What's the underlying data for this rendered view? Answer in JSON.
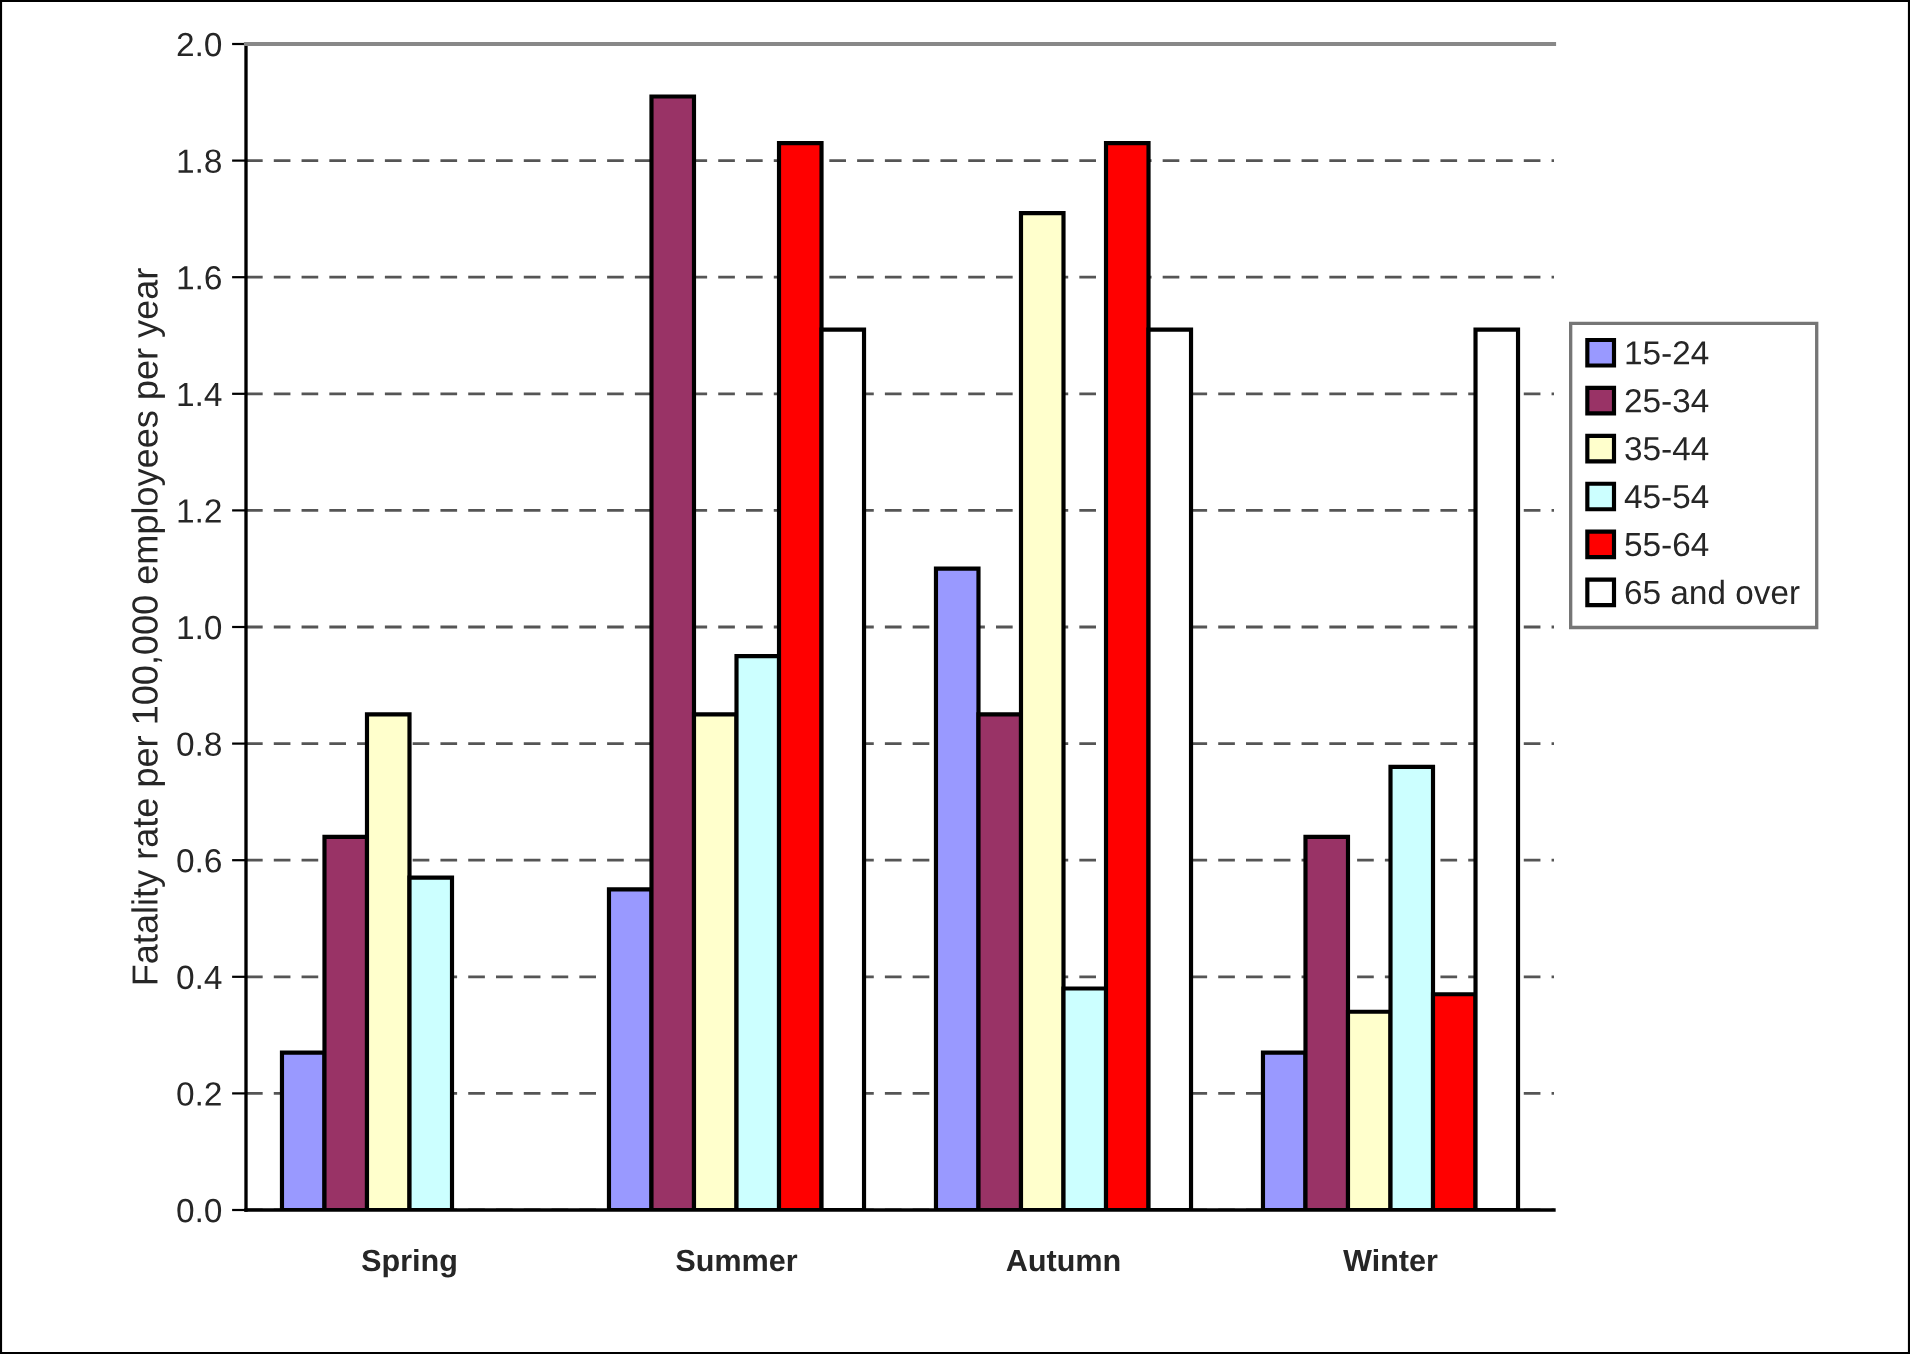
{
  "chart_data": {
    "type": "bar",
    "ylabel": "Fatality rate per 100,000 employees per year",
    "categories": [
      "Spring",
      "Summer",
      "Autumn",
      "Winter"
    ],
    "series": [
      {
        "name": "15-24",
        "color": "#9999ff",
        "values": [
          0.27,
          0.55,
          1.1,
          0.27
        ]
      },
      {
        "name": "25-34",
        "color": "#993366",
        "values": [
          0.64,
          1.91,
          0.85,
          0.64
        ]
      },
      {
        "name": "35-44",
        "color": "#ffffcc",
        "values": [
          0.85,
          0.85,
          1.71,
          0.34
        ]
      },
      {
        "name": "45-54",
        "color": "#ccffff",
        "values": [
          0.57,
          0.95,
          0.38,
          0.76
        ]
      },
      {
        "name": "55-64",
        "color": "#ff0000",
        "values": [
          null,
          1.83,
          1.83,
          0.37
        ]
      },
      {
        "name": "65 and over",
        "color": "#ffffff",
        "values": [
          null,
          1.51,
          1.51,
          1.51
        ]
      }
    ],
    "ylim": [
      0,
      2.0
    ],
    "yticks": [
      {
        "value": 0,
        "label": "0.0"
      },
      0.2,
      0.4,
      0.6,
      0.8,
      {
        "value": 1.0,
        "label": "1.0"
      },
      1.2,
      1.4,
      1.6,
      1.8,
      {
        "value": 2.0,
        "label": "2.0"
      }
    ],
    "grid": "y",
    "legend": "right"
  }
}
